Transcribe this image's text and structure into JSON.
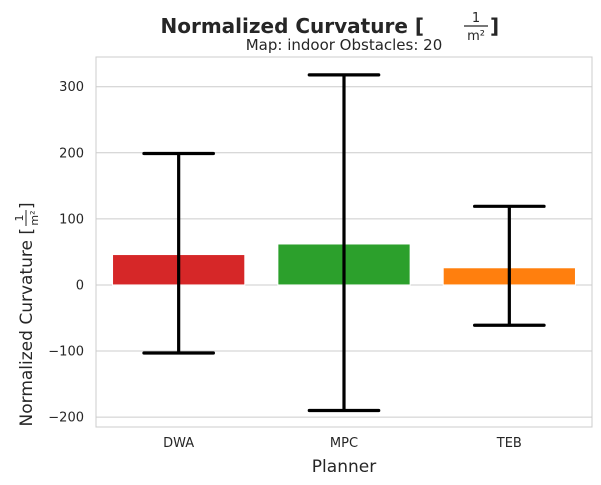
{
  "chart_data": {
    "type": "bar",
    "title_prefix": "Normalized Curvature [",
    "title_suffix": "]",
    "unit_numerator": "1",
    "unit_denominator": "m²",
    "subtitle": "Map: indoor Obstacles: 20",
    "xlabel": "Planner",
    "ylabel_prefix": "Normalized Curvature [",
    "ylabel_suffix": "]",
    "categories": [
      "DWA",
      "MPC",
      "TEB"
    ],
    "values": [
      46,
      62,
      26
    ],
    "error_low": [
      -103,
      -190,
      -61
    ],
    "error_high": [
      199,
      318,
      119
    ],
    "colors": [
      "#d62728",
      "#2ca02c",
      "#ff7f0e"
    ],
    "ylim": [
      -215,
      345
    ],
    "yticks": [
      -200,
      -100,
      0,
      100,
      200,
      300
    ],
    "grid": "horizontal"
  }
}
